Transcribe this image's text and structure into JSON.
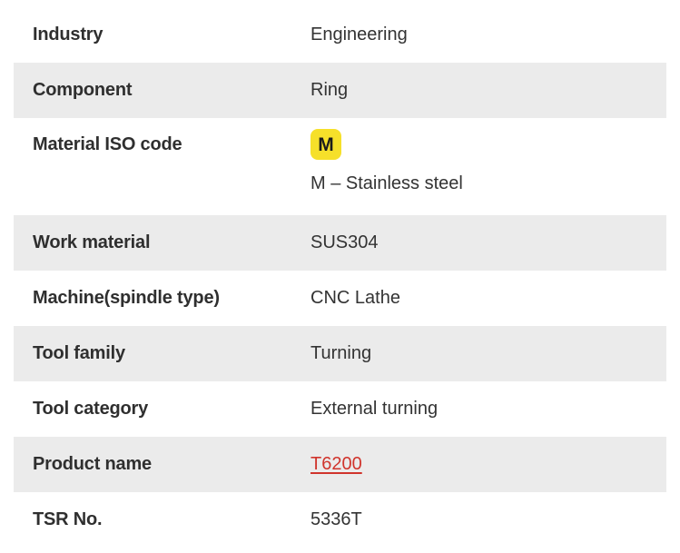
{
  "colors": {
    "stripe": "#ebebeb",
    "badge_bg": "#f6e02a",
    "badge_text": "#1c1c1c",
    "link": "#d0342c",
    "label_text": "#2f2f2f",
    "value_text": "#333333"
  },
  "table": {
    "rows": [
      {
        "label": "Industry",
        "value": "Engineering"
      },
      {
        "label": "Component",
        "value": "Ring"
      },
      {
        "label": "Material ISO code",
        "badge": "M",
        "value": "M – Stainless steel"
      },
      {
        "label": "Work material",
        "value": "SUS304"
      },
      {
        "label": "Machine(spindle type)",
        "value": "CNC Lathe"
      },
      {
        "label": "Tool family",
        "value": "Turning"
      },
      {
        "label": "Tool category",
        "value": "External turning"
      },
      {
        "label": "Product name",
        "value": "T6200"
      },
      {
        "label": "TSR No.",
        "value": "5336T"
      }
    ]
  }
}
